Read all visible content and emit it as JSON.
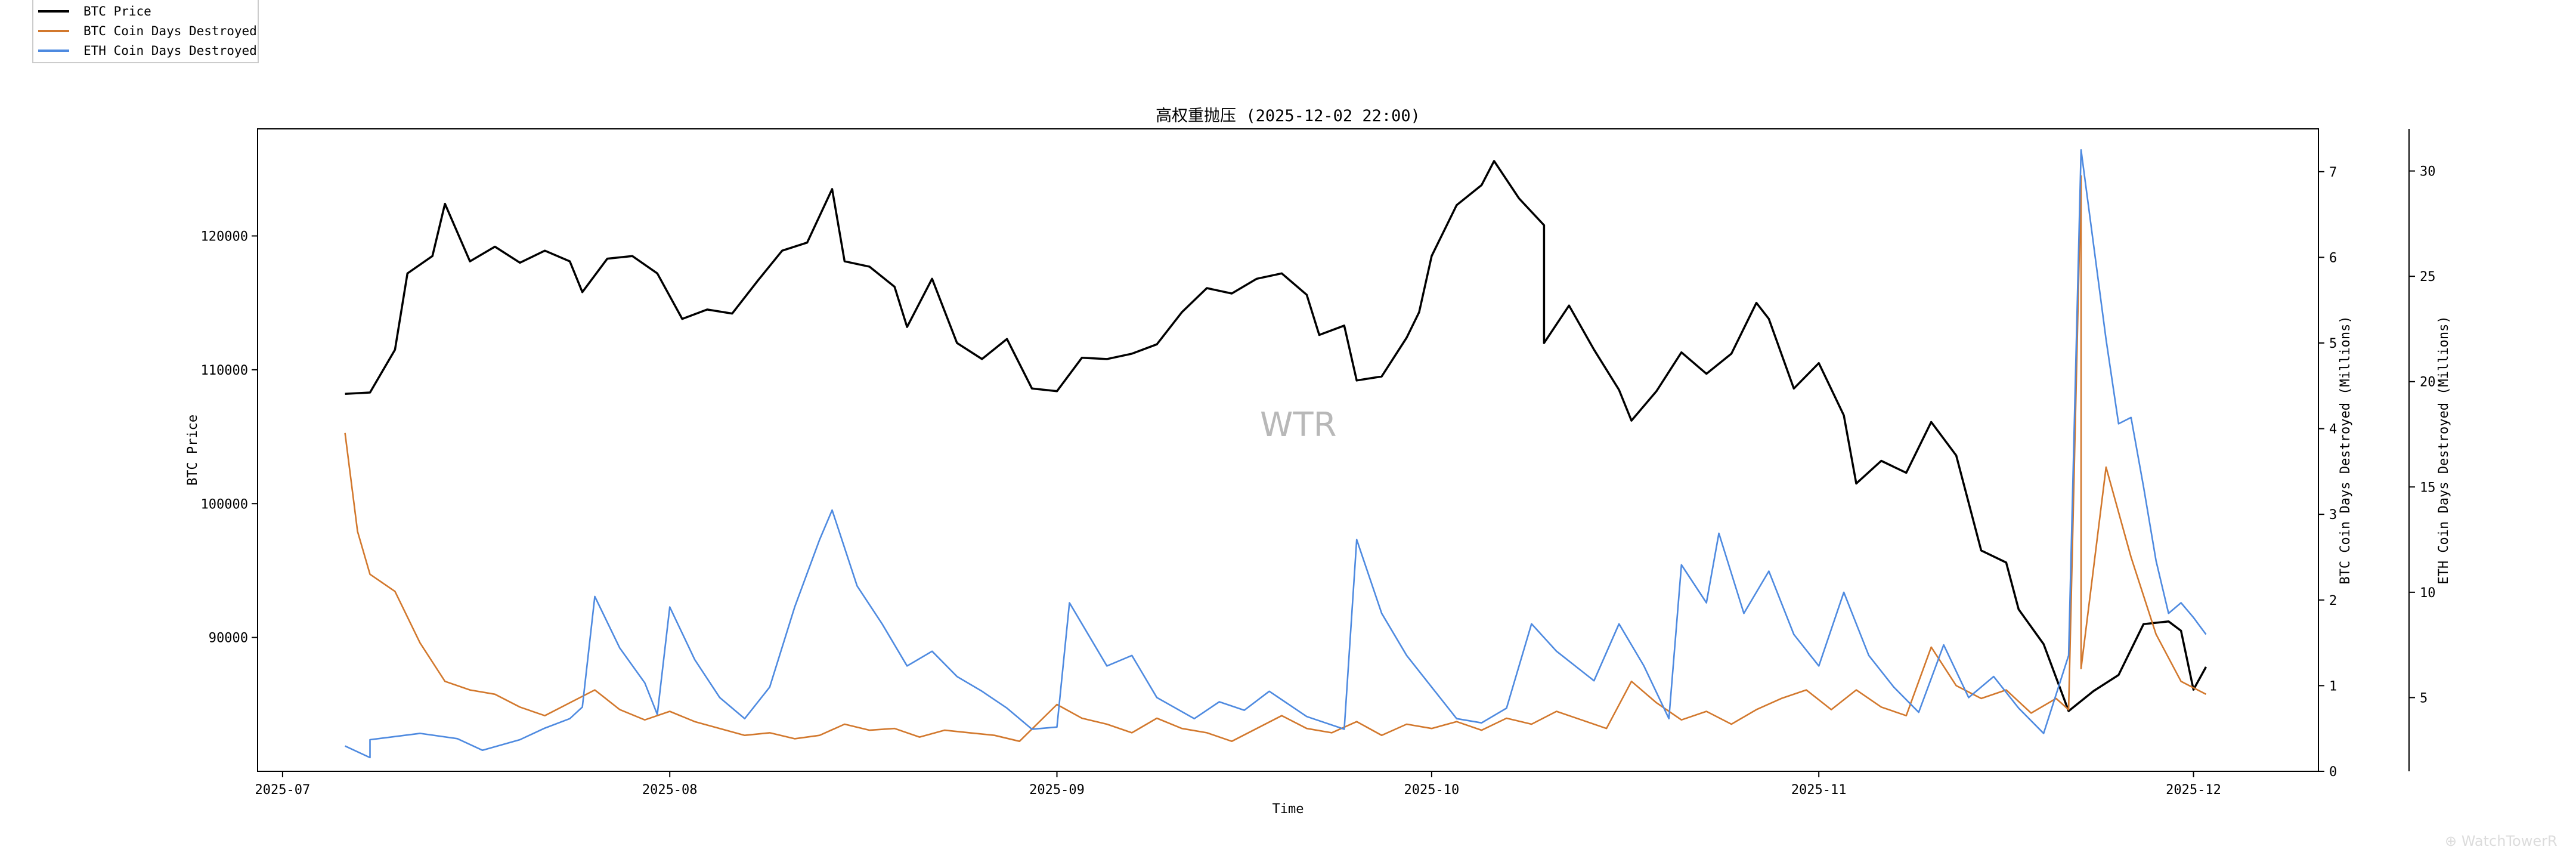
{
  "chart_data": {
    "type": "line",
    "title": "高权重抛压 (2025-12-02 22:00)",
    "xlabel": "Time",
    "x_ticks": [
      "2025-07",
      "2025-08",
      "2025-09",
      "2025-10",
      "2025-11",
      "2025-12"
    ],
    "x_range": [
      "2025-06-29",
      "2025-12-11"
    ],
    "axes": {
      "left": {
        "label": "BTC Price",
        "ylim": [
          80000,
          128000
        ],
        "ticks": [
          90000,
          100000,
          110000,
          120000
        ]
      },
      "right1": {
        "label": "BTC Coin Days Destroyed (Millions)",
        "ylim": [
          0,
          7.5
        ],
        "ticks": [
          0,
          1,
          2,
          3,
          4,
          5,
          6,
          7
        ]
      },
      "right2": {
        "label": "ETH Coin Days Destroyed (Millions)",
        "ylim": [
          1.5,
          32
        ],
        "ticks": [
          5,
          10,
          15,
          20,
          25,
          30
        ]
      }
    },
    "legend_position": "top-left",
    "grid": false,
    "series": [
      {
        "name": "BTC Price",
        "axis": "left",
        "color": "#000000",
        "points": [
          [
            "2025-07-06",
            108200
          ],
          [
            "2025-07-08",
            108300
          ],
          [
            "2025-07-10",
            111500
          ],
          [
            "2025-07-11",
            117200
          ],
          [
            "2025-07-13",
            118500
          ],
          [
            "2025-07-14",
            122400
          ],
          [
            "2025-07-16",
            118100
          ],
          [
            "2025-07-18",
            119200
          ],
          [
            "2025-07-20",
            118000
          ],
          [
            "2025-07-22",
            118900
          ],
          [
            "2025-07-24",
            118100
          ],
          [
            "2025-07-25",
            115800
          ],
          [
            "2025-07-27",
            118300
          ],
          [
            "2025-07-29",
            118500
          ],
          [
            "2025-07-31",
            117200
          ],
          [
            "2025-08-02",
            113800
          ],
          [
            "2025-08-04",
            114500
          ],
          [
            "2025-08-06",
            114200
          ],
          [
            "2025-08-08",
            116600
          ],
          [
            "2025-08-10",
            118900
          ],
          [
            "2025-08-12",
            119500
          ],
          [
            "2025-08-14",
            123500
          ],
          [
            "2025-08-15",
            118100
          ],
          [
            "2025-08-17",
            117700
          ],
          [
            "2025-08-19",
            116200
          ],
          [
            "2025-08-20",
            113200
          ],
          [
            "2025-08-22",
            116800
          ],
          [
            "2025-08-24",
            112000
          ],
          [
            "2025-08-26",
            110800
          ],
          [
            "2025-08-28",
            112300
          ],
          [
            "2025-08-30",
            108600
          ],
          [
            "2025-09-01",
            108400
          ],
          [
            "2025-09-03",
            110900
          ],
          [
            "2025-09-05",
            110800
          ],
          [
            "2025-09-07",
            111200
          ],
          [
            "2025-09-09",
            111900
          ],
          [
            "2025-09-11",
            114300
          ],
          [
            "2025-09-13",
            116100
          ],
          [
            "2025-09-15",
            115700
          ],
          [
            "2025-09-17",
            116800
          ],
          [
            "2025-09-19",
            117200
          ],
          [
            "2025-09-21",
            115600
          ],
          [
            "2025-09-22",
            112600
          ],
          [
            "2025-09-24",
            113300
          ],
          [
            "2025-09-25",
            109200
          ],
          [
            "2025-09-27",
            109500
          ],
          [
            "2025-09-29",
            112400
          ],
          [
            "2025-09-30",
            114300
          ],
          [
            "2025-10-01",
            118500
          ],
          [
            "2025-10-03",
            122300
          ],
          [
            "2025-10-05",
            123800
          ],
          [
            "2025-10-06",
            125600
          ],
          [
            "2025-10-08",
            122800
          ],
          [
            "2025-10-10",
            120800
          ],
          [
            "2025-10-10",
            112000
          ],
          [
            "2025-10-12",
            114800
          ],
          [
            "2025-10-14",
            111500
          ],
          [
            "2025-10-16",
            108500
          ],
          [
            "2025-10-17",
            106200
          ],
          [
            "2025-10-19",
            108400
          ],
          [
            "2025-10-21",
            111300
          ],
          [
            "2025-10-23",
            109700
          ],
          [
            "2025-10-25",
            111200
          ],
          [
            "2025-10-27",
            115000
          ],
          [
            "2025-10-28",
            113800
          ],
          [
            "2025-10-30",
            108600
          ],
          [
            "2025-11-01",
            110500
          ],
          [
            "2025-11-03",
            106600
          ],
          [
            "2025-11-04",
            101500
          ],
          [
            "2025-11-06",
            103200
          ],
          [
            "2025-11-08",
            102300
          ],
          [
            "2025-11-10",
            106100
          ],
          [
            "2025-11-12",
            103600
          ],
          [
            "2025-11-14",
            96500
          ],
          [
            "2025-11-16",
            95600
          ],
          [
            "2025-11-17",
            92100
          ],
          [
            "2025-11-19",
            89500
          ],
          [
            "2025-11-21",
            84500
          ],
          [
            "2025-11-23",
            86000
          ],
          [
            "2025-11-25",
            87200
          ],
          [
            "2025-11-27",
            91000
          ],
          [
            "2025-11-29",
            91200
          ],
          [
            "2025-11-30",
            90500
          ],
          [
            "2025-12-01",
            86100
          ],
          [
            "2025-12-02",
            87800
          ]
        ]
      },
      {
        "name": "BTC Coin Days Destroyed",
        "axis": "right1",
        "color": "#d2782d",
        "points": [
          [
            "2025-07-06",
            3.95
          ],
          [
            "2025-07-07",
            2.8
          ],
          [
            "2025-07-08",
            2.3
          ],
          [
            "2025-07-10",
            2.1
          ],
          [
            "2025-07-12",
            1.5
          ],
          [
            "2025-07-14",
            1.05
          ],
          [
            "2025-07-16",
            0.95
          ],
          [
            "2025-07-18",
            0.9
          ],
          [
            "2025-07-20",
            0.75
          ],
          [
            "2025-07-22",
            0.65
          ],
          [
            "2025-07-24",
            0.8
          ],
          [
            "2025-07-26",
            0.95
          ],
          [
            "2025-07-28",
            0.72
          ],
          [
            "2025-07-30",
            0.6
          ],
          [
            "2025-08-01",
            0.7
          ],
          [
            "2025-08-03",
            0.58
          ],
          [
            "2025-08-05",
            0.5
          ],
          [
            "2025-08-07",
            0.42
          ],
          [
            "2025-08-09",
            0.45
          ],
          [
            "2025-08-11",
            0.38
          ],
          [
            "2025-08-13",
            0.42
          ],
          [
            "2025-08-15",
            0.55
          ],
          [
            "2025-08-17",
            0.48
          ],
          [
            "2025-08-19",
            0.5
          ],
          [
            "2025-08-21",
            0.4
          ],
          [
            "2025-08-23",
            0.48
          ],
          [
            "2025-08-25",
            0.45
          ],
          [
            "2025-08-27",
            0.42
          ],
          [
            "2025-08-29",
            0.35
          ],
          [
            "2025-09-01",
            0.78
          ],
          [
            "2025-09-03",
            0.62
          ],
          [
            "2025-09-05",
            0.55
          ],
          [
            "2025-09-07",
            0.45
          ],
          [
            "2025-09-09",
            0.62
          ],
          [
            "2025-09-11",
            0.5
          ],
          [
            "2025-09-13",
            0.45
          ],
          [
            "2025-09-15",
            0.35
          ],
          [
            "2025-09-17",
            0.5
          ],
          [
            "2025-09-19",
            0.65
          ],
          [
            "2025-09-21",
            0.5
          ],
          [
            "2025-09-23",
            0.45
          ],
          [
            "2025-09-25",
            0.58
          ],
          [
            "2025-09-27",
            0.42
          ],
          [
            "2025-09-29",
            0.55
          ],
          [
            "2025-10-01",
            0.5
          ],
          [
            "2025-10-03",
            0.58
          ],
          [
            "2025-10-05",
            0.48
          ],
          [
            "2025-10-07",
            0.62
          ],
          [
            "2025-10-09",
            0.55
          ],
          [
            "2025-10-11",
            0.7
          ],
          [
            "2025-10-13",
            0.6
          ],
          [
            "2025-10-15",
            0.5
          ],
          [
            "2025-10-17",
            1.05
          ],
          [
            "2025-10-19",
            0.8
          ],
          [
            "2025-10-21",
            0.6
          ],
          [
            "2025-10-23",
            0.7
          ],
          [
            "2025-10-25",
            0.55
          ],
          [
            "2025-10-27",
            0.72
          ],
          [
            "2025-10-29",
            0.85
          ],
          [
            "2025-10-31",
            0.95
          ],
          [
            "2025-11-02",
            0.72
          ],
          [
            "2025-11-04",
            0.95
          ],
          [
            "2025-11-06",
            0.75
          ],
          [
            "2025-11-08",
            0.65
          ],
          [
            "2025-11-10",
            1.45
          ],
          [
            "2025-11-12",
            1.0
          ],
          [
            "2025-11-14",
            0.85
          ],
          [
            "2025-11-16",
            0.95
          ],
          [
            "2025-11-18",
            0.68
          ],
          [
            "2025-11-20",
            0.85
          ],
          [
            "2025-11-21",
            0.72
          ],
          [
            "2025-11-22",
            6.95
          ],
          [
            "2025-11-22",
            1.2
          ],
          [
            "2025-11-24",
            3.55
          ],
          [
            "2025-11-26",
            2.5
          ],
          [
            "2025-11-28",
            1.6
          ],
          [
            "2025-11-30",
            1.05
          ],
          [
            "2025-12-02",
            0.9
          ]
        ]
      },
      {
        "name": "ETH Coin Days Destroyed",
        "axis": "right2",
        "color": "#4e8ae0",
        "points": [
          [
            "2025-07-06",
            2.7
          ],
          [
            "2025-07-08",
            2.15
          ],
          [
            "2025-07-08",
            3.0
          ],
          [
            "2025-07-12",
            3.3
          ],
          [
            "2025-07-15",
            3.05
          ],
          [
            "2025-07-17",
            2.5
          ],
          [
            "2025-07-20",
            3.0
          ],
          [
            "2025-07-22",
            3.55
          ],
          [
            "2025-07-24",
            4.0
          ],
          [
            "2025-07-25",
            4.55
          ],
          [
            "2025-07-26",
            9.8
          ],
          [
            "2025-07-28",
            7.35
          ],
          [
            "2025-07-30",
            5.7
          ],
          [
            "2025-07-31",
            4.2
          ],
          [
            "2025-08-01",
            9.3
          ],
          [
            "2025-08-03",
            6.8
          ],
          [
            "2025-08-05",
            5.0
          ],
          [
            "2025-08-07",
            4.0
          ],
          [
            "2025-08-09",
            5.5
          ],
          [
            "2025-08-11",
            9.3
          ],
          [
            "2025-08-13",
            12.5
          ],
          [
            "2025-08-14",
            13.9
          ],
          [
            "2025-08-16",
            10.3
          ],
          [
            "2025-08-18",
            8.5
          ],
          [
            "2025-08-20",
            6.5
          ],
          [
            "2025-08-22",
            7.2
          ],
          [
            "2025-08-24",
            6.0
          ],
          [
            "2025-08-26",
            5.3
          ],
          [
            "2025-08-28",
            4.5
          ],
          [
            "2025-08-30",
            3.5
          ],
          [
            "2025-09-01",
            3.6
          ],
          [
            "2025-09-02",
            9.5
          ],
          [
            "2025-09-05",
            6.5
          ],
          [
            "2025-09-07",
            7.0
          ],
          [
            "2025-09-09",
            5.0
          ],
          [
            "2025-09-12",
            4.0
          ],
          [
            "2025-09-14",
            4.8
          ],
          [
            "2025-09-16",
            4.4
          ],
          [
            "2025-09-18",
            5.3
          ],
          [
            "2025-09-21",
            4.1
          ],
          [
            "2025-09-24",
            3.5
          ],
          [
            "2025-09-25",
            12.5
          ],
          [
            "2025-09-27",
            9.0
          ],
          [
            "2025-09-29",
            7.0
          ],
          [
            "2025-10-01",
            5.5
          ],
          [
            "2025-10-03",
            4.0
          ],
          [
            "2025-10-05",
            3.8
          ],
          [
            "2025-10-07",
            4.5
          ],
          [
            "2025-10-09",
            8.5
          ],
          [
            "2025-10-11",
            7.2
          ],
          [
            "2025-10-14",
            5.8
          ],
          [
            "2025-10-16",
            8.5
          ],
          [
            "2025-10-18",
            6.5
          ],
          [
            "2025-10-20",
            4.0
          ],
          [
            "2025-10-21",
            11.3
          ],
          [
            "2025-10-23",
            9.5
          ],
          [
            "2025-10-24",
            12.8
          ],
          [
            "2025-10-26",
            9.0
          ],
          [
            "2025-10-28",
            11.0
          ],
          [
            "2025-10-30",
            8.0
          ],
          [
            "2025-11-01",
            6.5
          ],
          [
            "2025-11-03",
            10.0
          ],
          [
            "2025-11-05",
            7.0
          ],
          [
            "2025-11-07",
            5.5
          ],
          [
            "2025-11-09",
            4.3
          ],
          [
            "2025-11-11",
            7.5
          ],
          [
            "2025-11-13",
            5.0
          ],
          [
            "2025-11-15",
            6.0
          ],
          [
            "2025-11-17",
            4.5
          ],
          [
            "2025-11-19",
            3.3
          ],
          [
            "2025-11-21",
            7.0
          ],
          [
            "2025-11-22",
            31.0
          ],
          [
            "2025-11-24",
            22.0
          ],
          [
            "2025-11-25",
            18.0
          ],
          [
            "2025-11-26",
            18.3
          ],
          [
            "2025-11-27",
            15.0
          ],
          [
            "2025-11-28",
            11.5
          ],
          [
            "2025-11-29",
            9.0
          ],
          [
            "2025-11-30",
            9.5
          ],
          [
            "2025-12-01",
            8.8
          ],
          [
            "2025-12-02",
            8.0
          ]
        ]
      }
    ]
  },
  "watermark": "WTR",
  "corner_watermark": "⊕ WatchTowerR"
}
